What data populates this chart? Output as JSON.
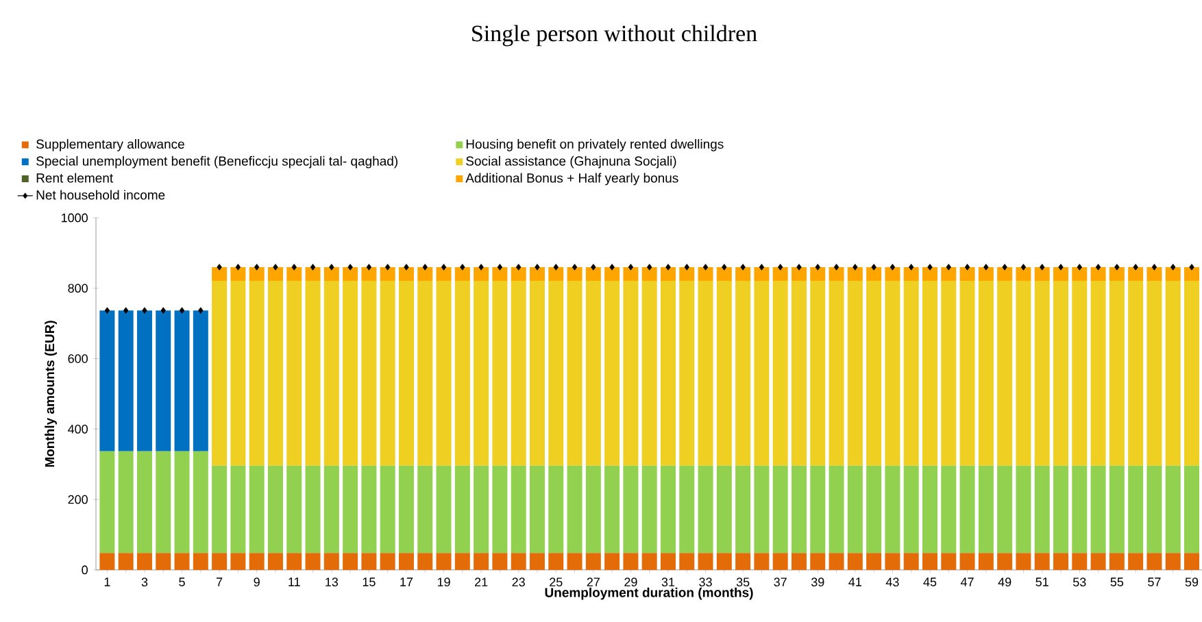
{
  "chart_data": {
    "type": "bar",
    "title": "Single person without children",
    "xlabel": "Unemployment duration (months)",
    "ylabel": "Monthly amounts (EUR)",
    "categories": [
      "1",
      null,
      "3",
      null,
      "5",
      null,
      "7",
      null,
      "9",
      null,
      "11",
      null,
      "13",
      null,
      "15",
      null,
      "17",
      null,
      "19",
      null,
      "21",
      null,
      "23",
      null,
      "25",
      null,
      "27",
      null,
      "29",
      null,
      "31",
      null,
      "33",
      null,
      "35",
      null,
      "37",
      null,
      "39",
      null,
      "41",
      null,
      "43",
      null,
      "45",
      null,
      "47",
      null,
      "49",
      null,
      "51",
      null,
      "53",
      null,
      "55",
      null,
      "57",
      null,
      "59"
    ],
    "stacked": true,
    "ylim": [
      0,
      1000
    ],
    "yticks": [
      0,
      200,
      400,
      600,
      800,
      1000
    ],
    "grid": false,
    "legend": "top",
    "series": [
      {
        "name": "Supplementary allowance",
        "color": "#e36c09",
        "values": [
          48,
          48,
          48,
          48,
          48,
          48,
          48,
          48,
          48,
          48,
          48,
          48,
          48,
          48,
          48,
          48,
          48,
          48,
          48,
          48,
          48,
          48,
          48,
          48,
          48,
          48,
          48,
          48,
          48,
          48,
          48,
          48,
          48,
          48,
          48,
          48,
          48,
          48,
          48,
          48,
          48,
          48,
          48,
          48,
          48,
          48,
          48,
          48,
          48,
          48,
          48,
          48,
          48,
          48,
          48,
          48,
          48,
          48,
          48
        ]
      },
      {
        "name": "Housing benefit on privately rented dwellings",
        "color": "#92d050",
        "values": [
          289,
          289,
          289,
          289,
          289,
          289,
          248,
          248,
          248,
          248,
          248,
          248,
          248,
          248,
          248,
          248,
          248,
          248,
          248,
          248,
          248,
          248,
          248,
          248,
          248,
          248,
          248,
          248,
          248,
          248,
          248,
          248,
          248,
          248,
          248,
          248,
          248,
          248,
          248,
          248,
          248,
          248,
          248,
          248,
          248,
          248,
          248,
          248,
          248,
          248,
          248,
          248,
          248,
          248,
          248,
          248,
          248,
          248,
          248
        ]
      },
      {
        "name": "Special unemployment benefit (Beneficcju specjali tal- qaghad)",
        "color": "#0070c0",
        "values": [
          400,
          400,
          400,
          400,
          400,
          400,
          0,
          0,
          0,
          0,
          0,
          0,
          0,
          0,
          0,
          0,
          0,
          0,
          0,
          0,
          0,
          0,
          0,
          0,
          0,
          0,
          0,
          0,
          0,
          0,
          0,
          0,
          0,
          0,
          0,
          0,
          0,
          0,
          0,
          0,
          0,
          0,
          0,
          0,
          0,
          0,
          0,
          0,
          0,
          0,
          0,
          0,
          0,
          0,
          0,
          0,
          0,
          0,
          0
        ]
      },
      {
        "name": "Social assistance (Ghajnuna Socjali)",
        "color": "#eecf22",
        "values": [
          0,
          0,
          0,
          0,
          0,
          0,
          525,
          525,
          525,
          525,
          525,
          525,
          525,
          525,
          525,
          525,
          525,
          525,
          525,
          525,
          525,
          525,
          525,
          525,
          525,
          525,
          525,
          525,
          525,
          525,
          525,
          525,
          525,
          525,
          525,
          525,
          525,
          525,
          525,
          525,
          525,
          525,
          525,
          525,
          525,
          525,
          525,
          525,
          525,
          525,
          525,
          525,
          525,
          525,
          525,
          525,
          525,
          525,
          525
        ]
      },
      {
        "name": "Rent element",
        "color": "#4f6228",
        "values": [
          0,
          0,
          0,
          0,
          0,
          0,
          0,
          0,
          0,
          0,
          0,
          0,
          0,
          0,
          0,
          0,
          0,
          0,
          0,
          0,
          0,
          0,
          0,
          0,
          0,
          0,
          0,
          0,
          0,
          0,
          0,
          0,
          0,
          0,
          0,
          0,
          0,
          0,
          0,
          0,
          0,
          0,
          0,
          0,
          0,
          0,
          0,
          0,
          0,
          0,
          0,
          0,
          0,
          0,
          0,
          0,
          0,
          0,
          0
        ]
      },
      {
        "name": "Additional Bonus + Half yearly bonus",
        "color": "#ffa500",
        "values": [
          0,
          0,
          0,
          0,
          0,
          0,
          39,
          39,
          39,
          39,
          39,
          39,
          39,
          39,
          39,
          39,
          39,
          39,
          39,
          39,
          39,
          39,
          39,
          39,
          39,
          39,
          39,
          39,
          39,
          39,
          39,
          39,
          39,
          39,
          39,
          39,
          39,
          39,
          39,
          39,
          39,
          39,
          39,
          39,
          39,
          39,
          39,
          39,
          39,
          39,
          39,
          39,
          39,
          39,
          39,
          39,
          39,
          39,
          39
        ]
      },
      {
        "name": "Net household income",
        "type": "scatter",
        "marker": "diamond",
        "color": "#000000",
        "values": [
          737,
          737,
          737,
          737,
          737,
          737,
          860,
          860,
          860,
          860,
          860,
          860,
          860,
          860,
          860,
          860,
          860,
          860,
          860,
          860,
          860,
          860,
          860,
          860,
          860,
          860,
          860,
          860,
          860,
          860,
          860,
          860,
          860,
          860,
          860,
          860,
          860,
          860,
          860,
          860,
          860,
          860,
          860,
          860,
          860,
          860,
          860,
          860,
          860,
          860,
          860,
          860,
          860,
          860,
          860,
          860,
          860,
          860,
          860
        ]
      }
    ]
  }
}
